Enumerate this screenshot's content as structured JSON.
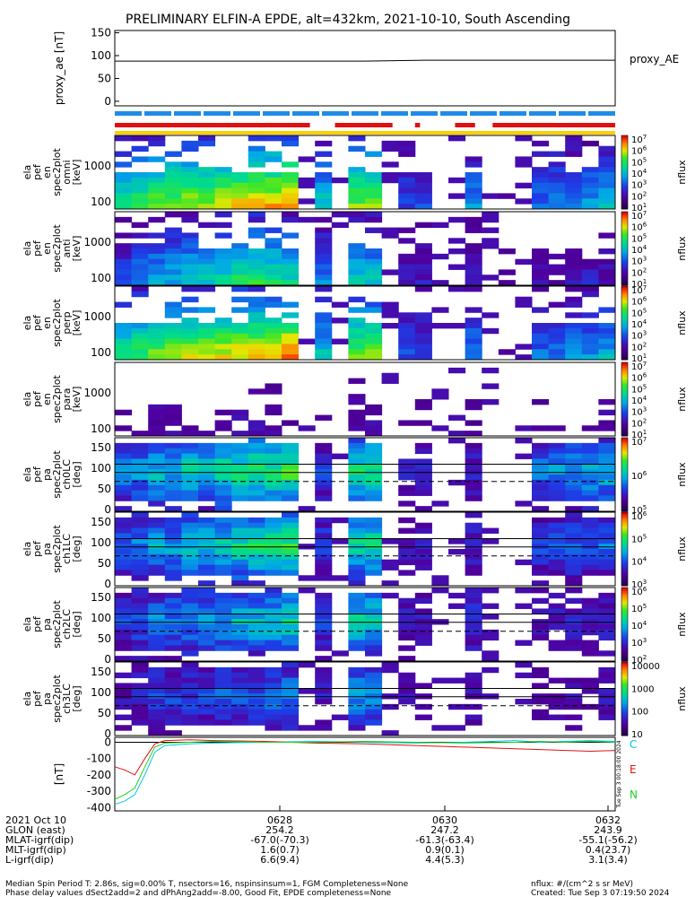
{
  "title": "PRELIMINARY ELFIN-A EPDE, alt=432km, 2021-10-10, South Ascending",
  "chart_data": [
    {
      "type": "line",
      "id": "proxy_ae",
      "ylabel": "proxy_ae [nT]",
      "legend": "proxy_AE",
      "yticks": [
        "150",
        "100",
        "50",
        "0"
      ],
      "ylim": [
        -10,
        155
      ],
      "series": [
        {
          "name": "proxy_AE",
          "x": [
            0,
            0.5,
            0.62,
            1.0
          ],
          "values": [
            88,
            88,
            90,
            90
          ]
        }
      ]
    },
    {
      "type": "heatmap",
      "id": "bars",
      "bars": [
        {
          "name": "fgm",
          "color": "#1e8ce8",
          "segments": [
            [
              0.0,
              1.0
            ]
          ]
        },
        {
          "name": "epde",
          "color": "#e01010",
          "segments": [
            [
              0.0,
              0.39
            ],
            [
              0.44,
              0.555
            ],
            [
              0.6,
              0.61
            ],
            [
              0.68,
              0.72
            ],
            [
              0.755,
              1.0
            ]
          ]
        },
        {
          "name": "stats",
          "color": "#ffd000",
          "segments": [
            [
              0.0,
              1.0
            ]
          ]
        }
      ]
    },
    {
      "type": "heatmap",
      "id": "spec_omni",
      "ylabel_lines": [
        "ela",
        "pef",
        "en",
        "spec2plot",
        "omni",
        "[keV]"
      ],
      "yticks": [
        "1000",
        "100"
      ],
      "cbar_ticks": [
        "10^7",
        "10^6",
        "10^5",
        "10^4",
        "10^3",
        "10^2",
        "10^1"
      ],
      "cbar_label": "nflux",
      "intensity": [
        0.6,
        0.65,
        0.7,
        0.72,
        0.75,
        0.75,
        0.78,
        0.8,
        0.82,
        0.85,
        0.9,
        0.0,
        0.5,
        0.0,
        0.7,
        0.72,
        0.0,
        0.3,
        0.3,
        0.0,
        0.0,
        0.4,
        0.0,
        0.1,
        0.0,
        0.35,
        0.38,
        0.4,
        0.42,
        0.45
      ]
    },
    {
      "type": "heatmap",
      "id": "spec_anti",
      "ylabel_lines": [
        "ela",
        "pef",
        "en",
        "spec2plot",
        "anti",
        "[keV]"
      ],
      "yticks": [
        "1000",
        "100"
      ],
      "cbar_ticks": [
        "10^7",
        "10^6",
        "10^5",
        "10^4",
        "10^3",
        "10^2",
        "10^1"
      ],
      "cbar_label": "nflux",
      "intensity": [
        0.3,
        0.4,
        0.45,
        0.45,
        0.5,
        0.5,
        0.55,
        0.6,
        0.62,
        0.6,
        0.55,
        0.0,
        0.4,
        0.0,
        0.5,
        0.5,
        0.0,
        0.2,
        0.2,
        0.0,
        0.0,
        0.2,
        0.0,
        0.1,
        0.0,
        0.15,
        0.15,
        0.2,
        0.2,
        0.2
      ]
    },
    {
      "type": "heatmap",
      "id": "spec_perp",
      "ylabel_lines": [
        "ela",
        "pef",
        "en",
        "spec2plot",
        "perp",
        "[keV]"
      ],
      "yticks": [
        "1000",
        "100"
      ],
      "cbar_ticks": [
        "10^7",
        "10^6",
        "10^5",
        "10^4",
        "10^3",
        "10^2",
        "10^1"
      ],
      "cbar_label": "nflux",
      "intensity": [
        0.6,
        0.65,
        0.7,
        0.72,
        0.75,
        0.75,
        0.78,
        0.8,
        0.82,
        0.85,
        0.9,
        0.0,
        0.5,
        0.0,
        0.7,
        0.72,
        0.0,
        0.3,
        0.3,
        0.0,
        0.0,
        0.4,
        0.0,
        0.1,
        0.0,
        0.35,
        0.38,
        0.4,
        0.42,
        0.45
      ]
    },
    {
      "type": "heatmap",
      "id": "spec_para",
      "ylabel_lines": [
        "ela",
        "pef",
        "en",
        "spec2plot",
        "para",
        "[keV]"
      ],
      "yticks": [
        "1000",
        "100"
      ],
      "cbar_ticks": [
        "10^7",
        "10^6",
        "10^5",
        "10^4",
        "10^3",
        "10^2",
        "10^1"
      ],
      "cbar_label": "nflux",
      "intensity": [
        0.1,
        0.1,
        0.15,
        0.15,
        0.1,
        0.1,
        0.1,
        0.15,
        0.15,
        0.15,
        0.1,
        0.0,
        0.1,
        0.0,
        0.15,
        0.15,
        0.0,
        0.1,
        0.1,
        0.0,
        0.0,
        0.1,
        0.0,
        0.05,
        0.0,
        0.1,
        0.1,
        0.1,
        0.1,
        0.15
      ]
    },
    {
      "type": "heatmap",
      "id": "pa_ch0",
      "ylabel_lines": [
        "ela",
        "pef",
        "pa",
        "spec2plot",
        "ch0LC",
        "[deg]"
      ],
      "yticks": [
        "150",
        "100",
        "50",
        "0"
      ],
      "cbar_ticks": [
        "10^7",
        "10^6",
        "10^5"
      ],
      "cbar_label": "nflux",
      "intensity": [
        0.4,
        0.45,
        0.5,
        0.5,
        0.55,
        0.55,
        0.6,
        0.62,
        0.65,
        0.65,
        0.7,
        0.0,
        0.3,
        0.0,
        0.6,
        0.62,
        0.0,
        0.2,
        0.2,
        0.0,
        0.0,
        0.25,
        0.0,
        0.05,
        0.0,
        0.4,
        0.42,
        0.45,
        0.48,
        0.5
      ]
    },
    {
      "type": "heatmap",
      "id": "pa_ch1",
      "ylabel_lines": [
        "ela",
        "pef",
        "pa",
        "spec2plot",
        "ch1LC",
        "[deg]"
      ],
      "yticks": [
        "150",
        "100",
        "50",
        "0"
      ],
      "cbar_ticks": [
        "10^6",
        "10^5",
        "10^4",
        "10^3"
      ],
      "cbar_label": "nflux",
      "intensity": [
        0.35,
        0.4,
        0.45,
        0.45,
        0.5,
        0.5,
        0.55,
        0.6,
        0.62,
        0.62,
        0.65,
        0.0,
        0.3,
        0.0,
        0.58,
        0.6,
        0.0,
        0.2,
        0.2,
        0.0,
        0.0,
        0.25,
        0.0,
        0.05,
        0.0,
        0.3,
        0.32,
        0.35,
        0.35,
        0.38
      ]
    },
    {
      "type": "heatmap",
      "id": "pa_ch2",
      "ylabel_lines": [
        "ela",
        "pef",
        "pa",
        "spec2plot",
        "ch2LC",
        "[deg]"
      ],
      "yticks": [
        "150",
        "100",
        "50",
        "0"
      ],
      "cbar_ticks": [
        "10^6",
        "10^5",
        "10^4",
        "10^3",
        "10^2"
      ],
      "cbar_label": "nflux",
      "intensity": [
        0.3,
        0.35,
        0.4,
        0.4,
        0.42,
        0.42,
        0.45,
        0.5,
        0.5,
        0.52,
        0.55,
        0.0,
        0.28,
        0.0,
        0.55,
        0.55,
        0.0,
        0.2,
        0.2,
        0.0,
        0.0,
        0.3,
        0.0,
        0.05,
        0.0,
        0.2,
        0.2,
        0.22,
        0.2,
        0.25
      ]
    },
    {
      "type": "heatmap",
      "id": "pa_ch3",
      "ylabel_lines": [
        "ela",
        "pef",
        "pa",
        "spec2plot",
        "ch3LC",
        "[deg]"
      ],
      "yticks": [
        "150",
        "100",
        "50",
        "0"
      ],
      "cbar_ticks": [
        "10000",
        "1000",
        "100",
        "10"
      ],
      "cbar_label": "nflux",
      "intensity": [
        0.2,
        0.25,
        0.3,
        0.3,
        0.3,
        0.3,
        0.35,
        0.35,
        0.35,
        0.38,
        0.4,
        0.0,
        0.2,
        0.0,
        0.45,
        0.45,
        0.0,
        0.15,
        0.15,
        0.0,
        0.0,
        0.2,
        0.0,
        0.05,
        0.0,
        0.15,
        0.15,
        0.18,
        0.15,
        0.2
      ]
    },
    {
      "type": "line",
      "id": "mag",
      "ylabel": "[nT]",
      "yticks": [
        "0",
        "-100",
        "-200",
        "-300",
        "-400"
      ],
      "ylim": [
        -420,
        30
      ],
      "side_text": "Tue Sep  3 00:18:00 2024",
      "series": [
        {
          "name": "C",
          "color": "#00c8e0",
          "x": [
            0,
            0.02,
            0.04,
            0.06,
            0.08,
            0.1,
            0.15,
            0.2,
            0.3,
            0.4,
            0.5,
            0.6,
            0.7,
            0.8,
            0.85,
            0.9,
            0.95,
            1.0
          ],
          "values": [
            -380,
            -360,
            -320,
            -200,
            -60,
            -20,
            -10,
            -5,
            0,
            5,
            0,
            -5,
            0,
            10,
            0,
            5,
            10,
            5
          ]
        },
        {
          "name": "E",
          "color": "#e01010",
          "x": [
            0,
            0.02,
            0.04,
            0.06,
            0.08,
            0.1,
            0.15,
            0.2,
            0.3,
            0.4,
            0.5,
            0.6,
            0.7,
            0.8,
            0.85,
            0.9,
            0.95,
            1.0
          ],
          "values": [
            -150,
            -170,
            -200,
            -100,
            -10,
            10,
            15,
            10,
            5,
            -5,
            -10,
            -20,
            -30,
            -40,
            -45,
            -50,
            -55,
            -50
          ]
        },
        {
          "name": "N",
          "color": "#20d020",
          "x": [
            0,
            0.02,
            0.04,
            0.06,
            0.08,
            0.1,
            0.15,
            0.2,
            0.3,
            0.4,
            0.5,
            0.6,
            0.7,
            0.8,
            0.85,
            0.9,
            0.95,
            1.0
          ],
          "values": [
            -350,
            -320,
            -280,
            -150,
            -30,
            -5,
            0,
            5,
            0,
            0,
            5,
            0,
            -5,
            0,
            5,
            0,
            5,
            0
          ]
        }
      ]
    }
  ],
  "xaxis": {
    "rows": [
      {
        "label": "2021 Oct 10",
        "values": [
          "0628",
          "0630",
          "0632"
        ]
      },
      {
        "label": "GLON (east)",
        "values": [
          "254.2",
          "247.2",
          "243.9"
        ]
      },
      {
        "label": "MLAT-igrf(dip)",
        "values": [
          "-67.0(-70.3)",
          "-61.3(-63.4)",
          "-55.1(-56.2)"
        ]
      },
      {
        "label": "MLT-igrf(dip)",
        "values": [
          "1.6(0.7)",
          "0.9(0.1)",
          "0.4(23.7)"
        ]
      },
      {
        "label": "L-igrf(dip)",
        "values": [
          "6.6(9.4)",
          "4.4(5.3)",
          "3.1(3.4)"
        ]
      }
    ]
  },
  "footer": {
    "line1_left": "Median Spin Period T: 2.86s, sig=0.00% T, nsectors=16, nspinsinsum=1, FGM Completeness=None",
    "line2_left": "Phase delay values dSect2add=2 and dPhAng2add=-8.00, Good Fit, EPDE completeness=None",
    "line1_right": "nflux: #/(cm^2 s sr MeV)",
    "line2_right": "Created: Tue Sep  3 07:19:50 2024"
  }
}
